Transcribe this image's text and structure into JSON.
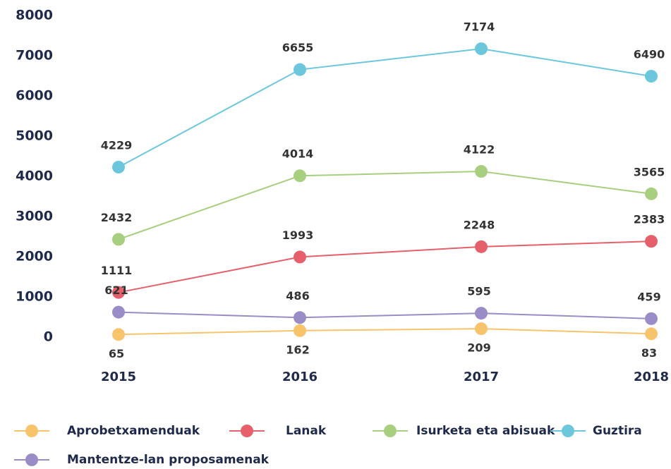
{
  "chart_data": {
    "type": "line",
    "categories": [
      "2015",
      "2016",
      "2017",
      "2018"
    ],
    "series": [
      {
        "name": "Aprobetxamenduak",
        "color": "#f7c46c",
        "values": [
          65,
          162,
          209,
          83
        ]
      },
      {
        "name": "Lanak",
        "color": "#e5606a",
        "values": [
          1111,
          1993,
          2248,
          2383
        ]
      },
      {
        "name": "Isurketa eta abisuak",
        "color": "#a8cf7f",
        "values": [
          2432,
          4014,
          4122,
          3565
        ]
      },
      {
        "name": "Guztira",
        "color": "#6cc7dc",
        "values": [
          4229,
          6655,
          7174,
          6490
        ]
      },
      {
        "name": "Mantentze-lan proposamenak",
        "color": "#9a8cc6",
        "values": [
          621,
          486,
          595,
          459
        ]
      }
    ],
    "ylim": [
      0,
      8000
    ],
    "yticks": [
      0,
      1000,
      2000,
      3000,
      4000,
      5000,
      6000,
      7000,
      8000
    ],
    "grid": false,
    "legend": "bottom"
  }
}
